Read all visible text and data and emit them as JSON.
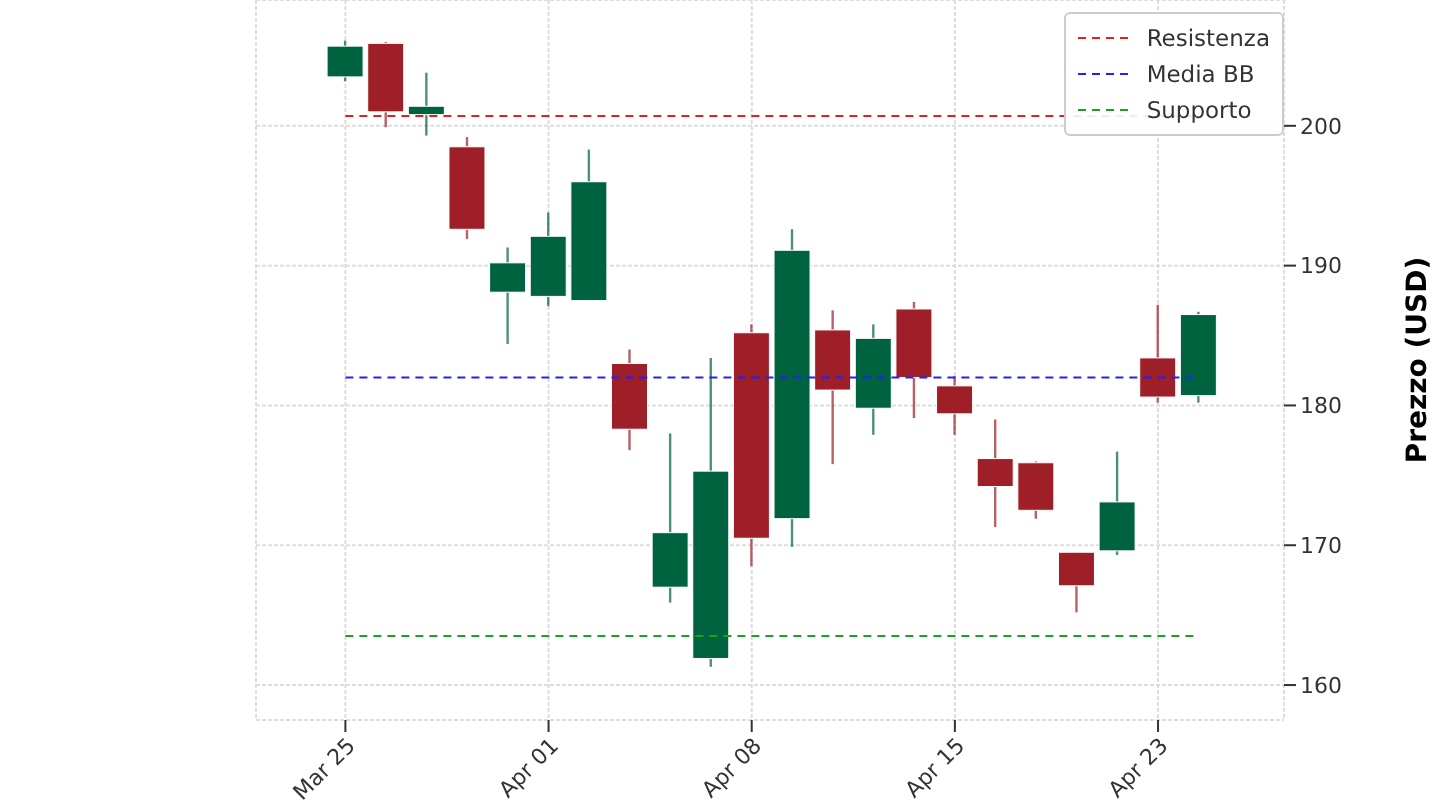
{
  "chart_data": {
    "type": "candlestick",
    "ylabel": "Prezzo (USD)",
    "categories": [
      "Mar 25",
      null,
      null,
      null,
      null,
      "Apr 01",
      null,
      null,
      null,
      null,
      "Apr 08",
      null,
      null,
      null,
      null,
      "Apr 15",
      null,
      null,
      null,
      null,
      "Apr 23",
      null
    ],
    "ohlc": [
      [
        203.5,
        206.1,
        203.2,
        205.7
      ],
      [
        205.9,
        206.0,
        199.9,
        201.0
      ],
      [
        200.8,
        203.8,
        199.3,
        201.4
      ],
      [
        198.5,
        199.2,
        191.9,
        192.6
      ],
      [
        188.1,
        191.3,
        184.4,
        190.2
      ],
      [
        187.8,
        193.8,
        187.1,
        192.1
      ],
      [
        187.5,
        198.3,
        187.5,
        196.0
      ],
      [
        183.0,
        184.0,
        176.8,
        178.3
      ],
      [
        167.0,
        178.0,
        165.9,
        170.9
      ],
      [
        161.9,
        183.4,
        161.3,
        175.3
      ],
      [
        185.2,
        185.8,
        168.5,
        170.5
      ],
      [
        171.9,
        192.6,
        169.9,
        191.1
      ],
      [
        185.4,
        186.8,
        175.8,
        181.1
      ],
      [
        179.8,
        185.8,
        177.9,
        184.8
      ],
      [
        186.9,
        187.4,
        179.1,
        182.0
      ],
      [
        181.4,
        182.1,
        177.9,
        179.4
      ],
      [
        176.2,
        179.0,
        171.3,
        174.2
      ],
      [
        175.9,
        176.0,
        171.9,
        172.5
      ],
      [
        169.5,
        169.5,
        165.2,
        167.1
      ],
      [
        169.6,
        176.7,
        169.3,
        173.1
      ],
      [
        183.4,
        187.2,
        180.2,
        180.6
      ],
      [
        180.7,
        186.7,
        180.2,
        186.5
      ]
    ],
    "colors": [
      "#006340",
      "#9e1f28",
      "#006340",
      "#9e1f28",
      "#006340",
      "#006340",
      "#006340",
      "#9e1f28",
      "#006340",
      "#006340",
      "#9e1f28",
      "#006340",
      "#9e1f28",
      "#006340",
      "#9e1f28",
      "#9e1f28",
      "#9e1f28",
      "#9e1f28",
      "#9e1f28",
      "#006340",
      "#9e1f28",
      "#006340"
    ],
    "ylim": [
      157.5,
      209
    ],
    "yticks": [
      160,
      170,
      180,
      190,
      200
    ],
    "ref_lines": [
      {
        "axis": "y",
        "value": 200.7,
        "label": "Resistenza",
        "color": "#e02020",
        "line_style": "dashed"
      },
      {
        "axis": "y",
        "value": 182.0,
        "label": "Media BB",
        "color": "#2020ff",
        "line_style": "dashed"
      },
      {
        "axis": "y",
        "value": 163.5,
        "label": "Supporto",
        "color": "#20a020",
        "line_style": "dashed"
      }
    ],
    "grid": true,
    "legend": "top right"
  }
}
